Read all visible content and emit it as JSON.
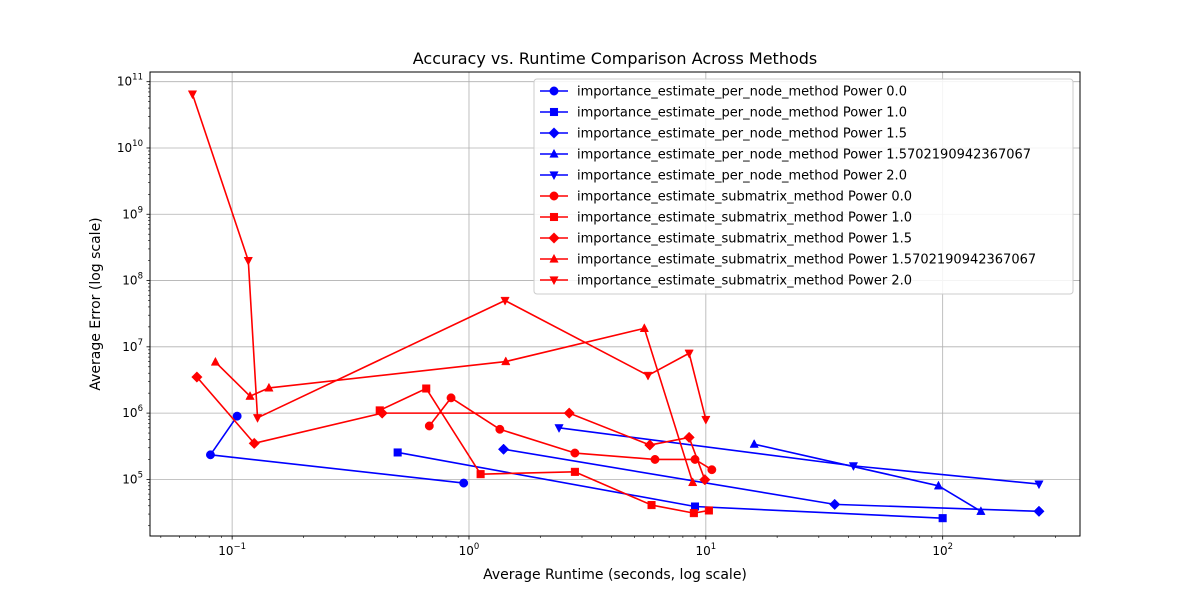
{
  "chart_data": {
    "type": "line",
    "title": "Accuracy vs. Runtime Comparison Across Methods",
    "xlabel": "Average Runtime (seconds, log scale)",
    "ylabel": "Average Error (log scale)",
    "xscale": "log",
    "yscale": "log",
    "xlim": [
      0.045,
      380
    ],
    "ylim": [
      14000,
      140000000000
    ],
    "x_ticks": [
      {
        "value": 0.1,
        "base": "10",
        "exp": "−1"
      },
      {
        "value": 1,
        "base": "10",
        "exp": "0"
      },
      {
        "value": 10,
        "base": "10",
        "exp": "1"
      },
      {
        "value": 100,
        "base": "10",
        "exp": "2"
      }
    ],
    "y_ticks": [
      {
        "value": 100000,
        "base": "10",
        "exp": "5"
      },
      {
        "value": 1000000,
        "base": "10",
        "exp": "6"
      },
      {
        "value": 10000000,
        "base": "10",
        "exp": "7"
      },
      {
        "value": 100000000,
        "base": "10",
        "exp": "8"
      },
      {
        "value": 1000000000,
        "base": "10",
        "exp": "9"
      },
      {
        "value": 10000000000,
        "base": "10",
        "exp": "10"
      },
      {
        "value": 100000000000,
        "base": "10",
        "exp": "11"
      }
    ],
    "grid": true,
    "legend_position": "top-right",
    "series": [
      {
        "name": "importance_estimate_per_node_method Power 0.0",
        "color": "#0000ff",
        "marker": "circle",
        "x": [
          0.105,
          0.081,
          0.95
        ],
        "y": [
          900000,
          235000,
          88000
        ]
      },
      {
        "name": "importance_estimate_per_node_method Power 1.0",
        "color": "#0000ff",
        "marker": "square",
        "x": [
          0.5,
          9.0,
          100
        ],
        "y": [
          255000,
          39000,
          26000
        ]
      },
      {
        "name": "importance_estimate_per_node_method Power 1.5",
        "color": "#0000ff",
        "marker": "diamond",
        "x": [
          1.4,
          35,
          255
        ],
        "y": [
          285000,
          42000,
          33000
        ]
      },
      {
        "name": "importance_estimate_per_node_method Power 1.5702190942367067",
        "color": "#0000ff",
        "marker": "triangle-up",
        "x": [
          16,
          96,
          145
        ],
        "y": [
          340000,
          80000,
          33000
        ]
      },
      {
        "name": "importance_estimate_per_node_method Power 2.0",
        "color": "#0000ff",
        "marker": "triangle-down",
        "x": [
          2.4,
          42,
          255
        ],
        "y": [
          600000,
          160000,
          85000
        ]
      },
      {
        "name": "importance_estimate_submatrix_method Power 0.0",
        "color": "#ff0000",
        "marker": "circle",
        "x": [
          0.68,
          0.84,
          1.35,
          2.8,
          6.1,
          9.0,
          10.6
        ],
        "y": [
          640000,
          1700000,
          570000,
          250000,
          200000,
          200000,
          140000
        ]
      },
      {
        "name": "importance_estimate_submatrix_method Power 1.0",
        "color": "#ff0000",
        "marker": "square",
        "x": [
          0.42,
          0.66,
          1.12,
          2.8,
          5.9,
          8.9,
          10.3
        ],
        "y": [
          1100000,
          2350000,
          120000,
          130000,
          41000,
          31000,
          34000
        ]
      },
      {
        "name": "importance_estimate_submatrix_method Power 1.5",
        "color": "#ff0000",
        "marker": "diamond",
        "x": [
          0.071,
          0.124,
          0.43,
          2.65,
          5.8,
          8.5,
          9.9
        ],
        "y": [
          3500000,
          350000,
          1000000,
          1000000,
          330000,
          430000,
          99000
        ]
      },
      {
        "name": "importance_estimate_submatrix_method Power 1.5702190942367067",
        "color": "#ff0000",
        "marker": "triangle-up",
        "x": [
          0.085,
          0.119,
          0.143,
          1.43,
          5.5,
          8.8
        ],
        "y": [
          5900000,
          1800000,
          2400000,
          6000000,
          19000000,
          90000
        ]
      },
      {
        "name": "importance_estimate_submatrix_method Power 2.0",
        "color": "#ff0000",
        "marker": "triangle-down",
        "x": [
          0.068,
          0.117,
          0.128,
          1.42,
          5.7,
          8.5,
          10.0
        ],
        "y": [
          65000000000,
          200000000,
          850000,
          50000000,
          3700000,
          8000000,
          800000
        ]
      }
    ]
  }
}
